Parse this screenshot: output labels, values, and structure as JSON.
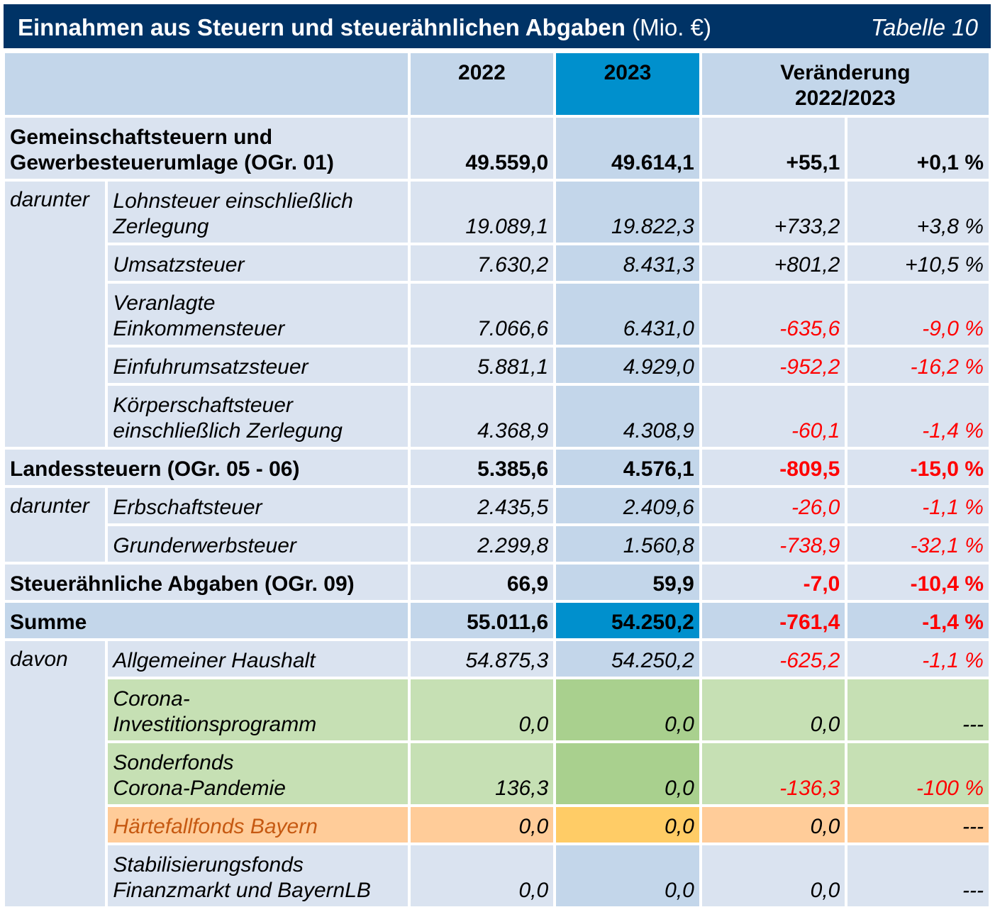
{
  "title": {
    "main": "Einnahmen aus Steuern und steuerähnlichen Abgaben",
    "unit": "(Mio. €)",
    "table_number": "Tabelle 10"
  },
  "header": {
    "col_2022": "2022",
    "col_2023": "2023",
    "col_change_line1": "Veränderung",
    "col_change_line2": "2022/2023"
  },
  "rows": {
    "gemeinschaft": {
      "label_line1": "Gemeinschaftsteuern und",
      "label_line2": "Gewerbesteuerumlage (OGr. 01)",
      "v2022": "49.559,0",
      "v2023": "49.614,1",
      "abs": "+55,1",
      "pct": "+0,1 %"
    },
    "darunter1": "darunter",
    "lohn": {
      "label_line1": "Lohnsteuer einschließlich",
      "label_line2": "Zerlegung",
      "v2022": "19.089,1",
      "v2023": "19.822,3",
      "abs": "+733,2",
      "pct": "+3,8 %"
    },
    "umsatz": {
      "label": "Umsatzsteuer",
      "v2022": "7.630,2",
      "v2023": "8.431,3",
      "abs": "+801,2",
      "pct": "+10,5 %"
    },
    "einkommen": {
      "label_line1": "Veranlagte",
      "label_line2": "Einkommensteuer",
      "v2022": "7.066,6",
      "v2023": "6.431,0",
      "abs": "-635,6",
      "pct": "-9,0 %"
    },
    "einfuhr": {
      "label": "Einfuhrumsatzsteuer",
      "v2022": "5.881,1",
      "v2023": "4.929,0",
      "abs": "-952,2",
      "pct": "-16,2 %"
    },
    "koerperschaft": {
      "label_line1": "Körperschaftsteuer",
      "label_line2": "einschließlich Zerlegung",
      "v2022": "4.368,9",
      "v2023": "4.308,9",
      "abs": "-60,1",
      "pct": "-1,4 %"
    },
    "landes": {
      "label": "Landessteuern (OGr. 05 - 06)",
      "v2022": "5.385,6",
      "v2023": "4.576,1",
      "abs": "-809,5",
      "pct": "-15,0 %"
    },
    "darunter2": "darunter",
    "erbschaft": {
      "label": "Erbschaftsteuer",
      "v2022": "2.435,5",
      "v2023": "2.409,6",
      "abs": "-26,0",
      "pct": "-1,1 %"
    },
    "grunderwerb": {
      "label": "Grunderwerbsteuer",
      "v2022": "2.299,8",
      "v2023": "1.560,8",
      "abs": "-738,9",
      "pct": "-32,1 %"
    },
    "steueraehnlich": {
      "label": "Steuerähnliche Abgaben (OGr. 09)",
      "v2022": "66,9",
      "v2023": "59,9",
      "abs": "-7,0",
      "pct": "-10,4 %"
    },
    "summe": {
      "label": "Summe",
      "v2022": "55.011,6",
      "v2023": "54.250,2",
      "abs": "-761,4",
      "pct": "-1,4 %"
    },
    "davon": "davon",
    "allgemein": {
      "label": "Allgemeiner Haushalt",
      "v2022": "54.875,3",
      "v2023": "54.250,2",
      "abs": "-625,2",
      "pct": "-1,1 %"
    },
    "corona_inv": {
      "label_line1": "Corona-",
      "label_line2": "Investitionsprogramm",
      "v2022": "0,0",
      "v2023": "0,0",
      "abs": "0,0",
      "pct": "---"
    },
    "sonderfonds": {
      "label_line1": "Sonderfonds",
      "label_line2": "Corona-Pandemie",
      "v2022": "136,3",
      "v2023": "0,0",
      "abs": "-136,3",
      "pct": "-100 %"
    },
    "haertefall": {
      "label": "Härtefallfonds Bayern",
      "v2022": "0,0",
      "v2023": "0,0",
      "abs": "0,0",
      "pct": "---"
    },
    "stabilisierung": {
      "label_line1": "Stabilisierungsfonds",
      "label_line2": "Finanzmarkt und BayernLB",
      "v2022": "0,0",
      "v2023": "0,0",
      "abs": "0,0",
      "pct": "---"
    }
  },
  "colors": {
    "title_bg": "#003366",
    "header_bg": "#c3d6ea",
    "highlight_2023": "#0090cd",
    "row_bg": "#dae3f0",
    "negative": "#ff0000",
    "corona_green": "#c6e0b4",
    "corona_green_2023": "#a9d08e",
    "haertefall_orange": "#ffcc99",
    "haertefall_orange_2023": "#ffcc66",
    "haertefall_text": "#c65911"
  }
}
